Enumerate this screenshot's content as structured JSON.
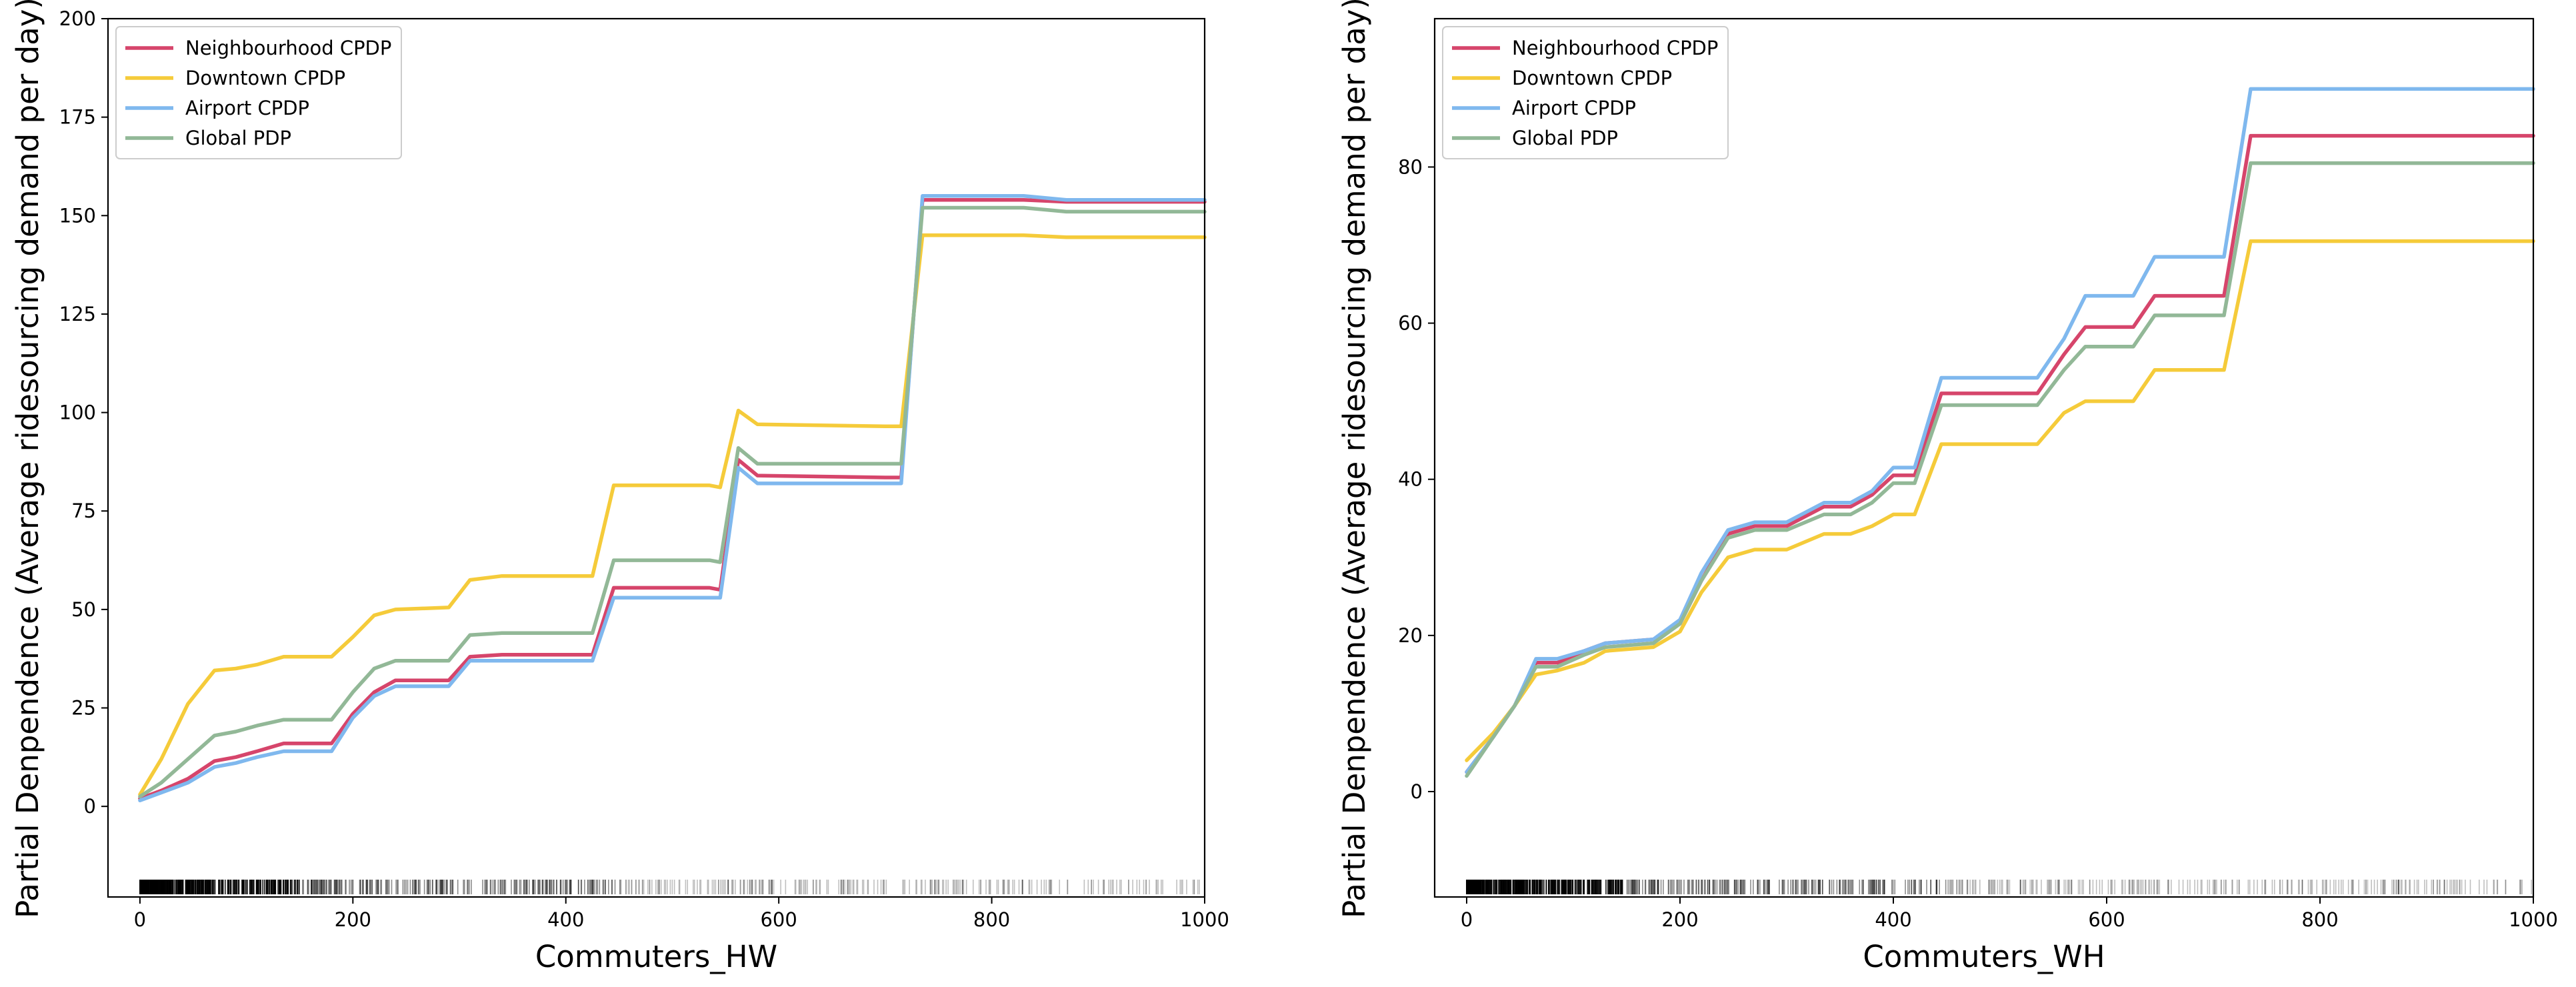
{
  "chart_data": [
    {
      "type": "line",
      "xlabel": "Commuters_HW",
      "ylabel": "Partial Denpendence (Average ridesourcing demand per day)",
      "xlim": [
        -30,
        1000
      ],
      "ylim": [
        -23,
        200
      ],
      "xticks": [
        0,
        200,
        400,
        600,
        800,
        1000
      ],
      "yticks": [
        0,
        25,
        50,
        75,
        100,
        125,
        150,
        175,
        200
      ],
      "legend_position": "top-left",
      "grid": false,
      "rug_range": [
        0,
        1000
      ],
      "series": [
        {
          "name": "Neighbourhood CPDP",
          "color": "#d6456b",
          "points": [
            [
              0,
              2
            ],
            [
              20,
              4
            ],
            [
              45,
              7
            ],
            [
              70,
              11.5
            ],
            [
              90,
              12.5
            ],
            [
              110,
              14
            ],
            [
              135,
              16
            ],
            [
              180,
              16
            ],
            [
              200,
              23.5
            ],
            [
              220,
              29
            ],
            [
              240,
              32
            ],
            [
              290,
              32
            ],
            [
              310,
              38
            ],
            [
              340,
              38.5
            ],
            [
              425,
              38.5
            ],
            [
              445,
              55.5
            ],
            [
              535,
              55.5
            ],
            [
              545,
              55
            ],
            [
              562,
              88
            ],
            [
              580,
              84
            ],
            [
              700,
              83.5
            ],
            [
              715,
              83.5
            ],
            [
              735,
              154
            ],
            [
              830,
              154
            ],
            [
              870,
              153.5
            ],
            [
              1000,
              153.5
            ]
          ]
        },
        {
          "name": "Downtown CPDP",
          "color": "#f5cb3a",
          "points": [
            [
              0,
              3
            ],
            [
              20,
              12
            ],
            [
              45,
              26
            ],
            [
              70,
              34.5
            ],
            [
              90,
              35
            ],
            [
              110,
              36
            ],
            [
              135,
              38
            ],
            [
              180,
              38
            ],
            [
              200,
              43
            ],
            [
              220,
              48.5
            ],
            [
              240,
              50
            ],
            [
              290,
              50.5
            ],
            [
              310,
              57.5
            ],
            [
              340,
              58.5
            ],
            [
              425,
              58.5
            ],
            [
              445,
              81.5
            ],
            [
              535,
              81.5
            ],
            [
              545,
              81
            ],
            [
              562,
              100.5
            ],
            [
              580,
              97
            ],
            [
              700,
              96.5
            ],
            [
              715,
              96.5
            ],
            [
              735,
              145
            ],
            [
              830,
              145
            ],
            [
              870,
              144.5
            ],
            [
              1000,
              144.5
            ]
          ]
        },
        {
          "name": "Airport CPDP",
          "color": "#7fb8ee",
          "points": [
            [
              0,
              1.5
            ],
            [
              20,
              3.5
            ],
            [
              45,
              6
            ],
            [
              70,
              10
            ],
            [
              90,
              11
            ],
            [
              110,
              12.5
            ],
            [
              135,
              14
            ],
            [
              180,
              14
            ],
            [
              200,
              22.5
            ],
            [
              220,
              28
            ],
            [
              240,
              30.5
            ],
            [
              290,
              30.5
            ],
            [
              310,
              37
            ],
            [
              340,
              37
            ],
            [
              425,
              37
            ],
            [
              445,
              53
            ],
            [
              535,
              53
            ],
            [
              545,
              53
            ],
            [
              562,
              86
            ],
            [
              580,
              82
            ],
            [
              700,
              82
            ],
            [
              715,
              82
            ],
            [
              735,
              155
            ],
            [
              830,
              155
            ],
            [
              870,
              154
            ],
            [
              1000,
              154
            ]
          ]
        },
        {
          "name": "Global PDP",
          "color": "#92b897",
          "points": [
            [
              0,
              2.5
            ],
            [
              20,
              6
            ],
            [
              45,
              12
            ],
            [
              70,
              18
            ],
            [
              90,
              19
            ],
            [
              110,
              20.5
            ],
            [
              135,
              22
            ],
            [
              180,
              22
            ],
            [
              200,
              29
            ],
            [
              220,
              35
            ],
            [
              240,
              37
            ],
            [
              290,
              37
            ],
            [
              310,
              43.5
            ],
            [
              340,
              44
            ],
            [
              425,
              44
            ],
            [
              445,
              62.5
            ],
            [
              535,
              62.5
            ],
            [
              545,
              62
            ],
            [
              562,
              91
            ],
            [
              580,
              87
            ],
            [
              700,
              87
            ],
            [
              715,
              87
            ],
            [
              735,
              152
            ],
            [
              830,
              152
            ],
            [
              870,
              151
            ],
            [
              1000,
              151
            ]
          ]
        }
      ]
    },
    {
      "type": "line",
      "xlabel": "Commuters_WH",
      "ylabel": "Partial Denpendence (Average ridesourcing demand per day)",
      "xlim": [
        -30,
        1000
      ],
      "ylim": [
        -13.5,
        99
      ],
      "xticks": [
        0,
        200,
        400,
        600,
        800,
        1000
      ],
      "yticks": [
        0,
        20,
        40,
        60,
        80
      ],
      "legend_position": "top-left",
      "grid": false,
      "rug_range": [
        0,
        1000
      ],
      "series": [
        {
          "name": "Neighbourhood CPDP",
          "color": "#d6456b",
          "points": [
            [
              0,
              2.5
            ],
            [
              25,
              7
            ],
            [
              45,
              11
            ],
            [
              65,
              16.5
            ],
            [
              85,
              16.5
            ],
            [
              110,
              18
            ],
            [
              130,
              19
            ],
            [
              175,
              19.5
            ],
            [
              200,
              21.5
            ],
            [
              220,
              27
            ],
            [
              245,
              33
            ],
            [
              270,
              34
            ],
            [
              300,
              34
            ],
            [
              335,
              36.5
            ],
            [
              360,
              36.5
            ],
            [
              380,
              38
            ],
            [
              400,
              40.5
            ],
            [
              420,
              40.5
            ],
            [
              445,
              51
            ],
            [
              535,
              51
            ],
            [
              560,
              56
            ],
            [
              580,
              59.5
            ],
            [
              625,
              59.5
            ],
            [
              645,
              63.5
            ],
            [
              710,
              63.5
            ],
            [
              735,
              84
            ],
            [
              1000,
              84
            ]
          ]
        },
        {
          "name": "Downtown CPDP",
          "color": "#f5cb3a",
          "points": [
            [
              0,
              4
            ],
            [
              25,
              7.5
            ],
            [
              45,
              11
            ],
            [
              65,
              15
            ],
            [
              85,
              15.5
            ],
            [
              110,
              16.5
            ],
            [
              130,
              18
            ],
            [
              175,
              18.5
            ],
            [
              200,
              20.5
            ],
            [
              220,
              25.5
            ],
            [
              245,
              30
            ],
            [
              270,
              31
            ],
            [
              300,
              31
            ],
            [
              335,
              33
            ],
            [
              360,
              33
            ],
            [
              380,
              34
            ],
            [
              400,
              35.5
            ],
            [
              420,
              35.5
            ],
            [
              445,
              44.5
            ],
            [
              535,
              44.5
            ],
            [
              560,
              48.5
            ],
            [
              580,
              50
            ],
            [
              625,
              50
            ],
            [
              645,
              54
            ],
            [
              710,
              54
            ],
            [
              735,
              70.5
            ],
            [
              1000,
              70.5
            ]
          ]
        },
        {
          "name": "Airport CPDP",
          "color": "#7fb8ee",
          "points": [
            [
              0,
              2.5
            ],
            [
              25,
              7
            ],
            [
              45,
              11
            ],
            [
              65,
              17
            ],
            [
              85,
              17
            ],
            [
              110,
              18
            ],
            [
              130,
              19
            ],
            [
              175,
              19.5
            ],
            [
              200,
              22
            ],
            [
              220,
              28
            ],
            [
              245,
              33.5
            ],
            [
              270,
              34.5
            ],
            [
              300,
              34.5
            ],
            [
              335,
              37
            ],
            [
              360,
              37
            ],
            [
              380,
              38.5
            ],
            [
              400,
              41.5
            ],
            [
              420,
              41.5
            ],
            [
              445,
              53
            ],
            [
              535,
              53
            ],
            [
              560,
              58
            ],
            [
              580,
              63.5
            ],
            [
              625,
              63.5
            ],
            [
              645,
              68.5
            ],
            [
              710,
              68.5
            ],
            [
              735,
              90
            ],
            [
              1000,
              90
            ]
          ]
        },
        {
          "name": "Global PDP",
          "color": "#92b897",
          "points": [
            [
              0,
              2
            ],
            [
              25,
              7
            ],
            [
              45,
              11
            ],
            [
              65,
              16
            ],
            [
              85,
              16
            ],
            [
              110,
              17.5
            ],
            [
              130,
              18.5
            ],
            [
              175,
              19
            ],
            [
              200,
              21.5
            ],
            [
              220,
              27
            ],
            [
              245,
              32.5
            ],
            [
              270,
              33.5
            ],
            [
              300,
              33.5
            ],
            [
              335,
              35.5
            ],
            [
              360,
              35.5
            ],
            [
              380,
              37
            ],
            [
              400,
              39.5
            ],
            [
              420,
              39.5
            ],
            [
              445,
              49.5
            ],
            [
              535,
              49.5
            ],
            [
              560,
              54
            ],
            [
              580,
              57
            ],
            [
              625,
              57
            ],
            [
              645,
              61
            ],
            [
              710,
              61
            ],
            [
              735,
              80.5
            ],
            [
              1000,
              80.5
            ]
          ]
        }
      ]
    }
  ]
}
